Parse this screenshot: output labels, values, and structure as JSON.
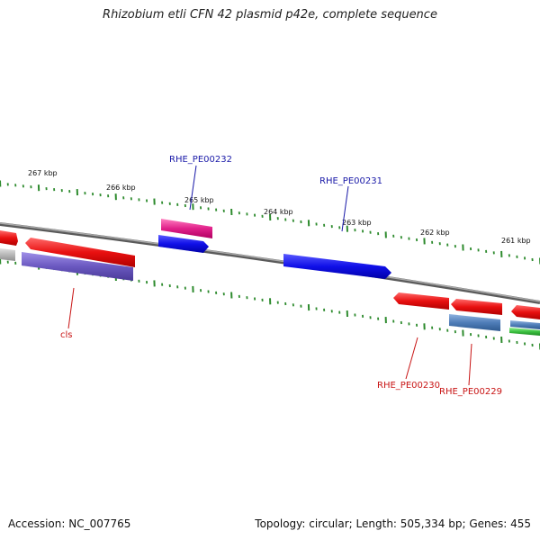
{
  "title": "Rhizobium etli CFN 42 plasmid p42e, complete sequence",
  "footer": {
    "accession": "Accession: NC_007765",
    "topology": "Topology: circular; Length: 505,334 bp; Genes: 455"
  },
  "colors": {
    "backbone": "#808080",
    "tick": "#2e8b2e",
    "label_blue": "#1a1aa8",
    "label_red": "#c81414",
    "red_gene": "#e81010",
    "blue_gene": "#1010e8",
    "magenta_gene": "#e0208a",
    "purple_gene": "#6a58c0",
    "steel_gene": "#4f7db8",
    "green_gene": "#3cc040",
    "gray_gene": "#b8b8b8"
  },
  "ruler": {
    "tick_labels": [
      "267 kbp",
      "266 kbp",
      "265 kbp",
      "264 kbp",
      "263 kbp",
      "262 kbp",
      "261 kbp"
    ]
  },
  "genes": [
    {
      "label": "RHE_PE00232",
      "color": "magenta_gene"
    },
    {
      "label": "RHE_PE00231",
      "color": "blue_gene"
    },
    {
      "label": "cls",
      "color": "purple_gene"
    },
    {
      "label": "RHE_PE00230",
      "color": "red_gene"
    },
    {
      "label": "RHE_PE00229",
      "color": "steel_gene"
    }
  ]
}
